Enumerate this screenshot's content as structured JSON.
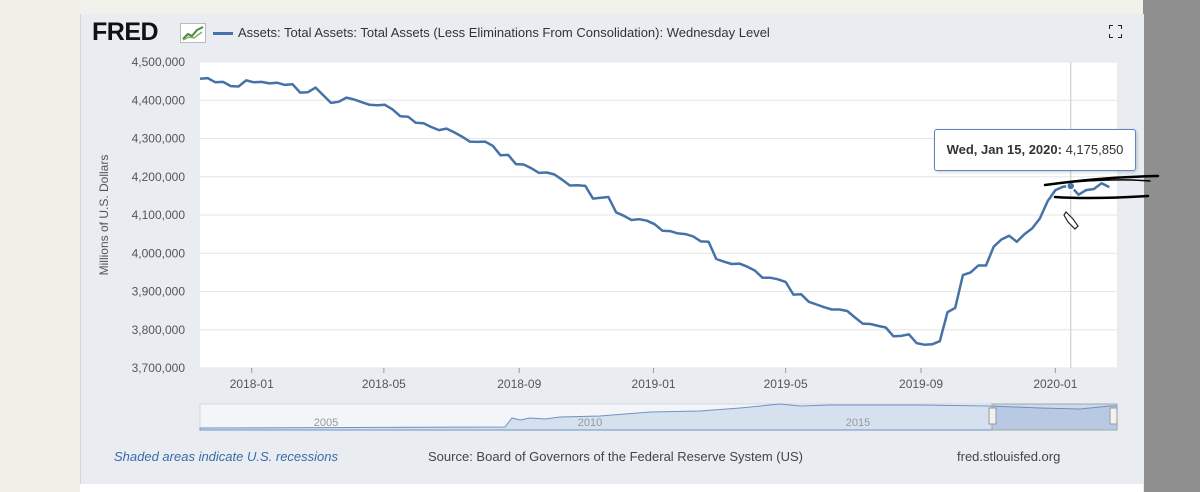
{
  "header": {
    "logo": "FRED",
    "title": "Assets: Total Assets: Total Assets (Less Eliminations From Consolidation): Wednesday Level"
  },
  "tooltip": {
    "date": "Wed, Jan 15, 2020:",
    "value": "4,175,850"
  },
  "footer": {
    "recessions": "Shaded areas indicate U.S. recessions",
    "source": "Source: Board of Governors of the Federal Reserve System (US)",
    "site": "fred.stlouisfed.org"
  },
  "navigator": {
    "labels": [
      "2005",
      "2010",
      "2015"
    ]
  },
  "colors": {
    "series": "#4572a7",
    "grid": "#e6e6e6",
    "panel": "#e9edf2",
    "annotation": "#000000"
  },
  "chart_data": {
    "type": "line",
    "title": "",
    "xlabel": "",
    "ylabel": "Millions of U.S. Dollars",
    "ylim": [
      3700000,
      4500000
    ],
    "yticks": [
      3700000,
      3800000,
      3900000,
      4000000,
      4100000,
      4200000,
      4300000,
      4400000,
      4500000
    ],
    "ytick_labels": [
      "3,700,000",
      "3,800,000",
      "3,900,000",
      "4,000,000",
      "4,100,000",
      "4,200,000",
      "4,300,000",
      "4,400,000",
      "4,500,000"
    ],
    "xticks": [
      "2018-01",
      "2018-05",
      "2018-09",
      "2019-01",
      "2019-05",
      "2019-09",
      "2020-01"
    ],
    "xlim": [
      "2017-11-15",
      "2020-02-26"
    ],
    "grid": true,
    "series": [
      {
        "name": "",
        "x": [
          "2017-11-15",
          "2017-11-22",
          "2017-11-29",
          "2017-12-06",
          "2017-12-13",
          "2017-12-20",
          "2017-12-27",
          "2018-01-03",
          "2018-01-10",
          "2018-01-17",
          "2018-01-24",
          "2018-01-31",
          "2018-02-07",
          "2018-02-14",
          "2018-02-21",
          "2018-02-28",
          "2018-03-07",
          "2018-03-14",
          "2018-03-21",
          "2018-03-28",
          "2018-04-04",
          "2018-04-11",
          "2018-04-18",
          "2018-04-25",
          "2018-05-02",
          "2018-05-09",
          "2018-05-16",
          "2018-05-23",
          "2018-05-30",
          "2018-06-06",
          "2018-06-13",
          "2018-06-20",
          "2018-06-27",
          "2018-07-04",
          "2018-07-11",
          "2018-07-18",
          "2018-07-25",
          "2018-08-01",
          "2018-08-08",
          "2018-08-15",
          "2018-08-22",
          "2018-08-29",
          "2018-09-05",
          "2018-09-12",
          "2018-09-19",
          "2018-09-26",
          "2018-10-03",
          "2018-10-10",
          "2018-10-17",
          "2018-10-24",
          "2018-10-31",
          "2018-11-07",
          "2018-11-14",
          "2018-11-21",
          "2018-11-28",
          "2018-12-05",
          "2018-12-12",
          "2018-12-19",
          "2018-12-26",
          "2019-01-02",
          "2019-01-09",
          "2019-01-16",
          "2019-01-23",
          "2019-01-30",
          "2019-02-06",
          "2019-02-13",
          "2019-02-20",
          "2019-02-27",
          "2019-03-06",
          "2019-03-13",
          "2019-03-20",
          "2019-03-27",
          "2019-04-03",
          "2019-04-10",
          "2019-04-17",
          "2019-04-24",
          "2019-05-01",
          "2019-05-08",
          "2019-05-15",
          "2019-05-22",
          "2019-05-29",
          "2019-06-05",
          "2019-06-12",
          "2019-06-19",
          "2019-06-26",
          "2019-07-03",
          "2019-07-10",
          "2019-07-17",
          "2019-07-24",
          "2019-07-31",
          "2019-08-07",
          "2019-08-14",
          "2019-08-21",
          "2019-08-28",
          "2019-09-04",
          "2019-09-11",
          "2019-09-18",
          "2019-09-25",
          "2019-10-02",
          "2019-10-09",
          "2019-10-16",
          "2019-10-23",
          "2019-10-30",
          "2019-11-06",
          "2019-11-13",
          "2019-11-20",
          "2019-11-27",
          "2019-12-04",
          "2019-12-11",
          "2019-12-18",
          "2019-12-25",
          "2020-01-01",
          "2020-01-08",
          "2020-01-15",
          "2020-01-22",
          "2020-01-29",
          "2020-02-05",
          "2020-02-12",
          "2020-02-19"
        ],
        "y": [
          4456000,
          4458000,
          4447000,
          4448000,
          4437000,
          4436000,
          4452000,
          4447000,
          4448000,
          4444000,
          4446000,
          4440000,
          4442000,
          4420000,
          4421000,
          4433000,
          4413000,
          4393000,
          4396000,
          4407000,
          4402000,
          4395000,
          4388000,
          4387000,
          4388000,
          4376000,
          4358000,
          4357000,
          4341000,
          4340000,
          4330000,
          4322000,
          4326000,
          4316000,
          4305000,
          4292000,
          4291000,
          4292000,
          4281000,
          4256000,
          4257000,
          4233000,
          4232000,
          4222000,
          4210000,
          4211000,
          4206000,
          4192000,
          4177000,
          4178000,
          4176000,
          4143000,
          4145000,
          4147000,
          4107000,
          4098000,
          4087000,
          4089000,
          4085000,
          4076000,
          4059000,
          4058000,
          4052000,
          4050000,
          4044000,
          4031000,
          4030000,
          3985000,
          3978000,
          3972000,
          3973000,
          3965000,
          3955000,
          3936000,
          3936000,
          3932000,
          3925000,
          3892000,
          3893000,
          3873000,
          3866000,
          3859000,
          3853000,
          3853000,
          3849000,
          3832000,
          3816000,
          3815000,
          3810000,
          3806000,
          3783000,
          3784000,
          3788000,
          3765000,
          3761000,
          3762000,
          3770000,
          3846000,
          3857000,
          3943000,
          3950000,
          3968000,
          3968000,
          4017000,
          4036000,
          4046000,
          4030000,
          4050000,
          4065000,
          4091000,
          4136000,
          4165000,
          4174000,
          4175850,
          4153000,
          4165000,
          4168000,
          4183000,
          4173000
        ]
      }
    ]
  }
}
